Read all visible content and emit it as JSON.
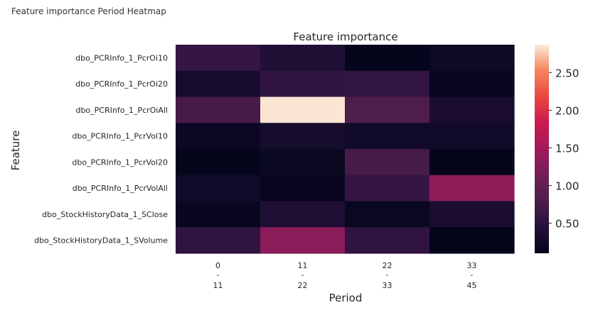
{
  "page": {
    "title": "Feature importance Period Heatmap"
  },
  "chart_data": {
    "type": "heatmap",
    "title": "Feature importance",
    "xlabel": "Period",
    "ylabel": "Feature",
    "columns": [
      {
        "start": "0",
        "sep": "-",
        "end": "11"
      },
      {
        "start": "11",
        "sep": "-",
        "end": "22"
      },
      {
        "start": "22",
        "sep": "-",
        "end": "33"
      },
      {
        "start": "33",
        "sep": "-",
        "end": "45"
      }
    ],
    "rows": [
      "dbo_PCRInfo_1_PcrOi10",
      "dbo_PCRInfo_1_PcrOi20",
      "dbo_PCRInfo_1_PcrOiAll",
      "dbo_PCRInfo_1_PcrVol10",
      "dbo_PCRInfo_1_PcrVol20",
      "dbo_PCRInfo_1_PcrVolAll",
      "dbo_StockHistoryData_1_SClose",
      "dbo_StockHistoryData_1_SVolume"
    ],
    "values": [
      [
        0.6,
        0.4,
        0.12,
        0.22
      ],
      [
        0.32,
        0.55,
        0.58,
        0.15
      ],
      [
        0.75,
        2.85,
        0.82,
        0.35
      ],
      [
        0.2,
        0.3,
        0.25,
        0.25
      ],
      [
        0.12,
        0.18,
        0.75,
        0.12
      ],
      [
        0.25,
        0.14,
        0.6,
        1.35
      ],
      [
        0.15,
        0.4,
        0.17,
        0.35
      ],
      [
        0.55,
        1.3,
        0.55,
        0.1
      ]
    ],
    "colorbar": {
      "min": 0.1,
      "max": 2.87,
      "ticks": [
        "0.50",
        "1.00",
        "1.50",
        "2.00",
        "2.50"
      ],
      "colormap": "rocket"
    }
  }
}
